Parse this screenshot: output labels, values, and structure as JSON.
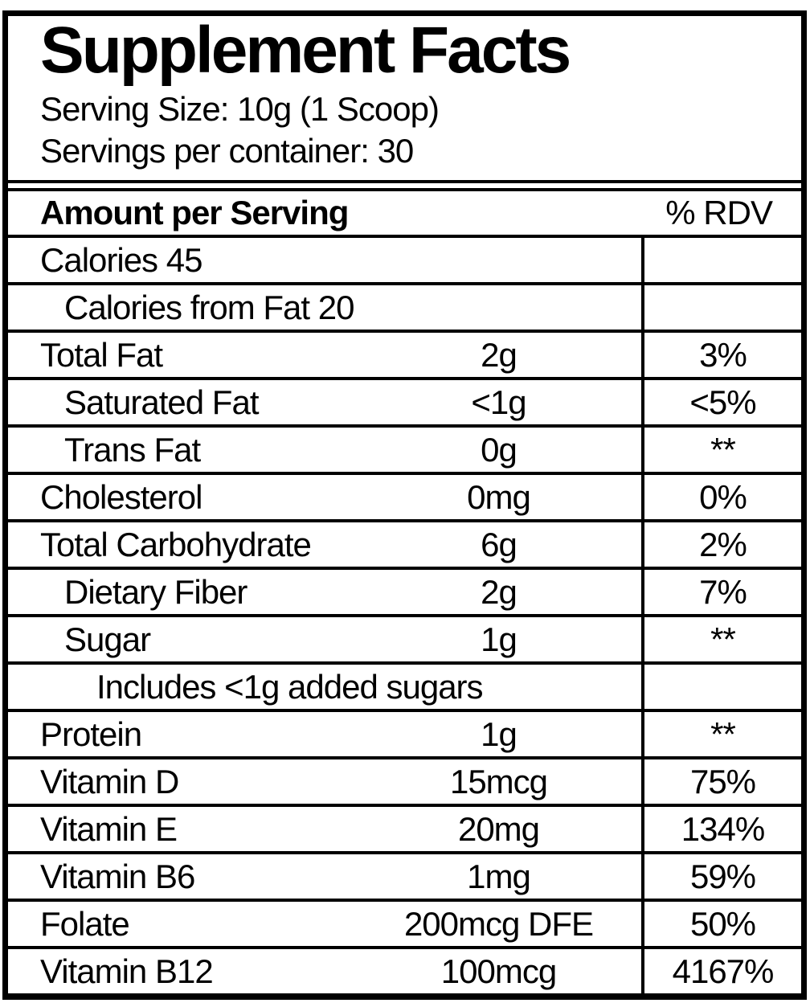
{
  "title": "Supplement Facts",
  "serving_size_line": "Serving Size: 10g (1 Scoop)",
  "servings_per_container_line": "Servings per container: 30",
  "table": {
    "header": {
      "amount_label": "Amount per Serving",
      "rdv_label": "% RDV"
    },
    "rows": [
      {
        "name": "Calories 45",
        "amount": "",
        "rdv": "",
        "indent": 0
      },
      {
        "name": "Calories from Fat 20",
        "amount": "",
        "rdv": "",
        "indent": 1
      },
      {
        "name": "Total Fat",
        "amount": "2g",
        "rdv": "3%",
        "indent": 0
      },
      {
        "name": "Saturated Fat",
        "amount": "<1g",
        "rdv": "<5%",
        "indent": 1
      },
      {
        "name": "Trans Fat",
        "amount": "0g",
        "rdv": "**",
        "indent": 1
      },
      {
        "name": "Cholesterol",
        "amount": "0mg",
        "rdv": "0%",
        "indent": 0
      },
      {
        "name": "Total Carbohydrate",
        "amount": "6g",
        "rdv": "2%",
        "indent": 0
      },
      {
        "name": "Dietary Fiber",
        "amount": "2g",
        "rdv": "7%",
        "indent": 1
      },
      {
        "name": "Sugar",
        "amount": "1g",
        "rdv": "**",
        "indent": 1
      },
      {
        "name": "Includes <1g added sugars",
        "amount": "",
        "rdv": "",
        "indent": 2
      },
      {
        "name": "Protein",
        "amount": "1g",
        "rdv": "**",
        "indent": 0
      },
      {
        "name": "Vitamin D",
        "amount": "15mcg",
        "rdv": "75%",
        "indent": 0
      },
      {
        "name": "Vitamin E",
        "amount": "20mg",
        "rdv": "134%",
        "indent": 0
      },
      {
        "name": "Vitamin B6",
        "amount": "1mg",
        "rdv": "59%",
        "indent": 0
      },
      {
        "name": "Folate",
        "amount": "200mcg DFE",
        "rdv": "50%",
        "indent": 0
      },
      {
        "name": "Vitamin B12",
        "amount": "100mcg",
        "rdv": "4167%",
        "indent": 0
      }
    ]
  },
  "colors": {
    "border": "#000000",
    "background": "#ffffff",
    "text": "#000000"
  }
}
